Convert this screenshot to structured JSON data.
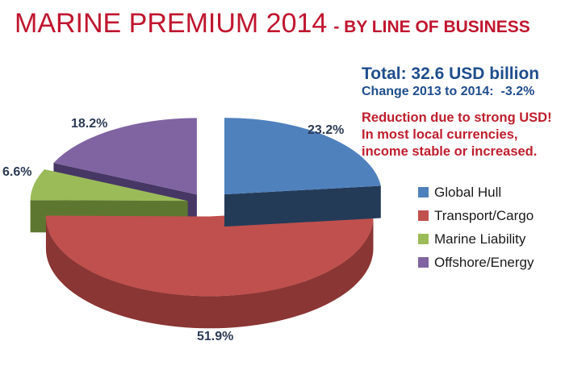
{
  "title": {
    "main": "MARINE PREMIUM 2014",
    "suffix": "- BY LINE OF BUSINESS"
  },
  "summary": {
    "total": "Total: 32.6 USD billion",
    "change": "Change 2013 to 2014:  -3.2%",
    "note_lines": [
      "Reduction due to strong USD!",
      "In most local currencies,",
      "income stable or increased."
    ]
  },
  "chart_data": {
    "type": "pie",
    "style": "3d-exploded",
    "title": "MARINE PREMIUM 2014 - BY LINE OF BUSINESS",
    "labels": [
      "Global Hull",
      "Transport/Cargo",
      "Marine Liability",
      "Offshore/Energy"
    ],
    "values": [
      23.2,
      51.9,
      6.6,
      18.2
    ],
    "value_labels": [
      "23.2%",
      "51.9%",
      "6.6%",
      "18.2%"
    ],
    "unit": "%",
    "colors": [
      "#4F81BD",
      "#C0504D",
      "#9BBB59",
      "#8064A2"
    ],
    "side_colors": [
      "#243B58",
      "#8A3634",
      "#5E7730",
      "#463765"
    ],
    "start_angle": "12-oclock",
    "direction": "clockwise",
    "legend_position": "right"
  },
  "colors": {
    "background": "#FFFFFF",
    "title_red": "#C0162F",
    "note_red": "#BE1E2D",
    "info_blue": "#1F4E8C",
    "label_navy": "#2C3B55",
    "legend_text": "#1A1A1A"
  }
}
